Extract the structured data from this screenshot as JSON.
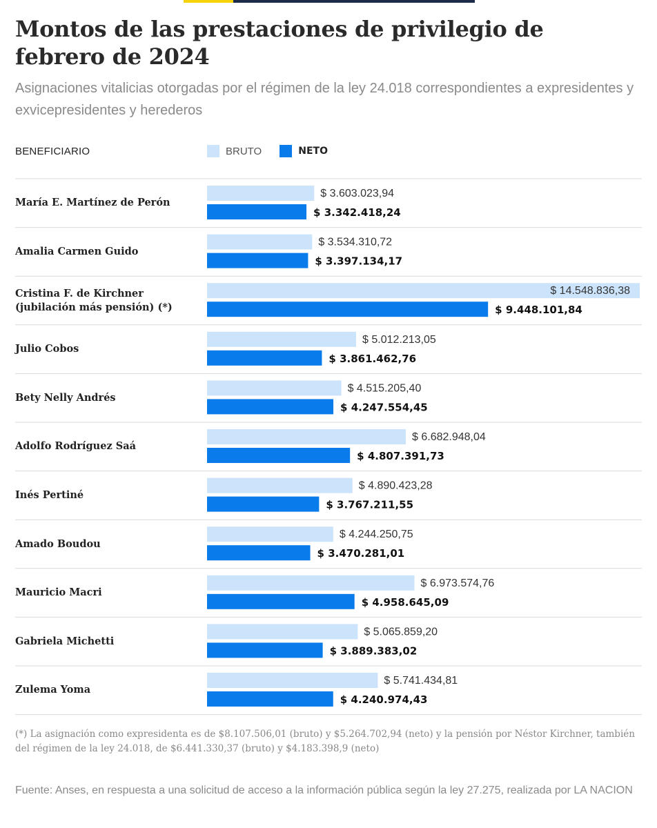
{
  "header": {
    "title": "Montos de las prestaciones de privilegio de febrero de 2024",
    "subtitle": "Asignaciones vitalicias otorgadas por el régimen de la ley 24.018 correspondientes a expresidentes y exvicepresidentes y herederos"
  },
  "table": {
    "column_header": "BENEFICIARIO"
  },
  "legend": {
    "bruto": "BRUTO",
    "neto": "NETO"
  },
  "colors": {
    "bruto": "#cce4fb",
    "neto": "#0a7bea",
    "brand_yellow": "#f5d20a",
    "brand_navy": "#1c2b4a"
  },
  "chart_data": {
    "type": "bar",
    "orientation": "horizontal",
    "categories": [
      "María E. Martínez de Perón",
      "Amalia Carmen Guido",
      "Cristina F. de Kirchner (jubilación más pensión) (*)",
      "Julio Cobos",
      "Bety Nelly Andrés",
      "Adolfo Rodríguez Saá",
      "Inés Pertiné",
      "Amado Boudou",
      "Mauricio Macri",
      "Gabriela Michetti",
      "Zulema Yoma"
    ],
    "series": [
      {
        "name": "BRUTO",
        "values": [
          3603023.94,
          3534310.72,
          14548836.38,
          5012213.05,
          4515205.4,
          6682948.04,
          4890423.28,
          4244250.75,
          6973574.76,
          5065859.2,
          5741434.81
        ],
        "labels": [
          "$ 3.603.023,94",
          "$ 3.534.310,72",
          "$ 14.548.836,38",
          "$ 5.012.213,05",
          "$ 4.515.205,40",
          "$ 6.682.948,04",
          "$ 4.890.423,28",
          "$ 4.244.250,75",
          "$ 6.973.574,76",
          "$ 5.065.859,20",
          "$ 5.741.434,81"
        ]
      },
      {
        "name": "NETO",
        "values": [
          3342418.24,
          3397134.17,
          9448101.84,
          3861462.76,
          4247554.45,
          4807391.73,
          3767211.55,
          3470281.01,
          4958645.09,
          3889383.02,
          4240974.43
        ],
        "labels": [
          "$ 3.342.418,24",
          "$ 3.397.134,17",
          "$ 9.448.101,84",
          "$ 3.861.462,76",
          "$ 4.247.554,45",
          "$ 4.807.391,73",
          "$ 3.767.211,55",
          "$ 3.470.281,01",
          "$ 4.958.645,09",
          "$ 3.889.383,02",
          "$ 4.240.974,43"
        ]
      }
    ],
    "xlim": [
      0,
      14548836.38
    ],
    "legend_position": "top"
  },
  "notes": {
    "footnote": "(*) La asignación como expresidenta es de $8.107.506,01 (bruto) y $5.264.702,94 (neto) y la pensión por Néstor Kirchner, también del régimen de la ley 24.018, de $6.441.330,37 (bruto) y $4.183.398,9 (neto)",
    "source": "Fuente: Anses, en respuesta a una solicitud de acceso a la información pública según la ley 27.275, realizada por LA NACION"
  }
}
